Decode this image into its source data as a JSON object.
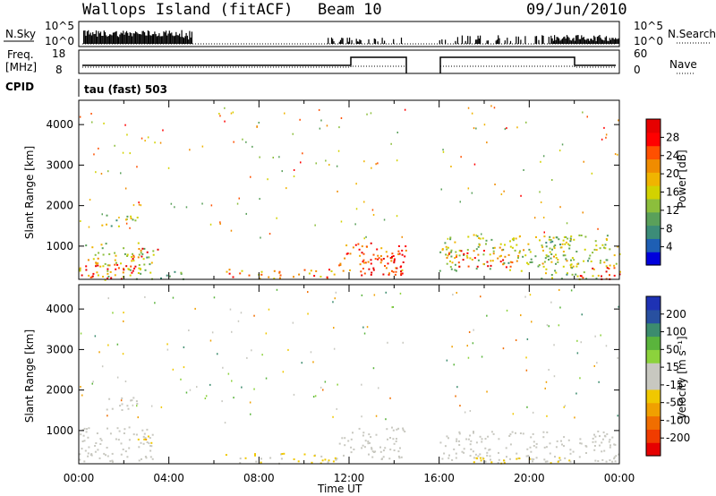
{
  "header": {
    "station": "Wallops Island (fitACF)",
    "beam": "Beam 10",
    "date": "09/Jun/2010"
  },
  "strips": {
    "nsky": {
      "label": "N.Sky",
      "ytick_top": "10^5",
      "ytick_bottom": "10^0",
      "right_label": "N.Search",
      "right_tick_top": "10^5",
      "right_tick_bottom": "10^0"
    },
    "freq": {
      "label_line1": "Freq.",
      "label_line2": "[MHz]",
      "ytick_top": "18",
      "ytick_bottom": "8",
      "right_label": "Nave",
      "right_tick_top": "60",
      "right_tick_bottom": "0"
    },
    "cpid": {
      "label": "CPID",
      "mode": "tau (fast) 503"
    }
  },
  "colorbars": {
    "power": {
      "title": "Power [dB]",
      "ticks": [
        "28",
        "24",
        "20",
        "16",
        "12",
        "8",
        "4"
      ],
      "colors": [
        "#0000dc",
        "#1e5fb4",
        "#3c8c78",
        "#5aa05a",
        "#8cbe3c",
        "#d2d200",
        "#f0b400",
        "#f08c00",
        "#ff5000",
        "#ff0000",
        "#e60000"
      ]
    },
    "velocity": {
      "title": "Velocity [m s⁻¹]",
      "ticks": [
        "200",
        "100",
        "50",
        "15",
        "-15",
        "-50",
        "-100",
        "-200"
      ],
      "colors": [
        "#1e32b4",
        "#2850a0",
        "#3c8c6e",
        "#5ab43c",
        "#8cd23c",
        "#c8c8c0",
        "#c8c8c0",
        "#f0c800",
        "#f0a000",
        "#f06e00",
        "#f03c00",
        "#e60000"
      ]
    }
  },
  "axes": {
    "ylabel": "Slant Range [km]",
    "xlabel": "Time UT",
    "yticks": [
      "4000",
      "3000",
      "2000",
      "1000"
    ],
    "xticks": [
      "00:00",
      "04:00",
      "08:00",
      "12:00",
      "16:00",
      "20:00",
      "00:00"
    ]
  },
  "chart_data": [
    {
      "type": "heatmap",
      "title": "Power [dB]",
      "x_unit": "UT hours",
      "y_unit": "km",
      "xlim": [
        0,
        24
      ],
      "ylim": [
        180,
        4600
      ],
      "clim": [
        0,
        30
      ],
      "data_gap_hours": [
        14.5,
        16.0
      ],
      "regions": [
        {
          "x": [
            0.0,
            3.3
          ],
          "y": [
            180,
            1100
          ],
          "level": 14
        },
        {
          "x": [
            0.0,
            2.5
          ],
          "y": [
            200,
            600
          ],
          "level": 27
        },
        {
          "x": [
            1.0,
            2.6
          ],
          "y": [
            1500,
            1850
          ],
          "level": 12
        },
        {
          "x": [
            2.3,
            3.5
          ],
          "y": [
            700,
            1000
          ],
          "level": 26
        },
        {
          "x": [
            3.6,
            4.9
          ],
          "y": [
            200,
            400
          ],
          "level": 11
        },
        {
          "x": [
            6.5,
            11.5
          ],
          "y": [
            200,
            450
          ],
          "level": 20
        },
        {
          "x": [
            11.5,
            14.5
          ],
          "y": [
            300,
            1100
          ],
          "level": 22
        },
        {
          "x": [
            12.5,
            14.5
          ],
          "y": [
            300,
            900
          ],
          "level": 28
        },
        {
          "x": [
            16.0,
            22.0
          ],
          "y": [
            400,
            1300
          ],
          "level": 14
        },
        {
          "x": [
            16.3,
            19.3
          ],
          "y": [
            500,
            950
          ],
          "level": 24
        },
        {
          "x": [
            20.5,
            24.0
          ],
          "y": [
            200,
            1300
          ],
          "level": 13
        },
        {
          "x": [
            22.0,
            24.0
          ],
          "y": [
            200,
            500
          ],
          "level": 28
        }
      ]
    },
    {
      "type": "heatmap",
      "title": "Velocity [m s⁻¹]",
      "x_unit": "UT hours",
      "y_unit": "km",
      "xlim": [
        0,
        24
      ],
      "ylim": [
        180,
        4600
      ],
      "clim": [
        -250,
        250
      ],
      "data_gap_hours": [
        14.5,
        16.0
      ],
      "regions": [
        {
          "x": [
            0.0,
            3.3
          ],
          "y": [
            250,
            1100
          ],
          "level": 0
        },
        {
          "x": [
            0.2,
            1.5
          ],
          "y": [
            250,
            450
          ],
          "level": 40
        },
        {
          "x": [
            1.0,
            2.6
          ],
          "y": [
            1500,
            1850
          ],
          "level": 0
        },
        {
          "x": [
            2.5,
            3.5
          ],
          "y": [
            700,
            900
          ],
          "level": -80
        },
        {
          "x": [
            6.5,
            11.5
          ],
          "y": [
            200,
            450
          ],
          "level": -50
        },
        {
          "x": [
            11.5,
            14.5
          ],
          "y": [
            300,
            1100
          ],
          "level": 0
        },
        {
          "x": [
            16.0,
            24.0
          ],
          "y": [
            250,
            1000
          ],
          "level": 0
        },
        {
          "x": [
            17.0,
            22.0
          ],
          "y": [
            200,
            350
          ],
          "level": -50
        }
      ]
    }
  ]
}
